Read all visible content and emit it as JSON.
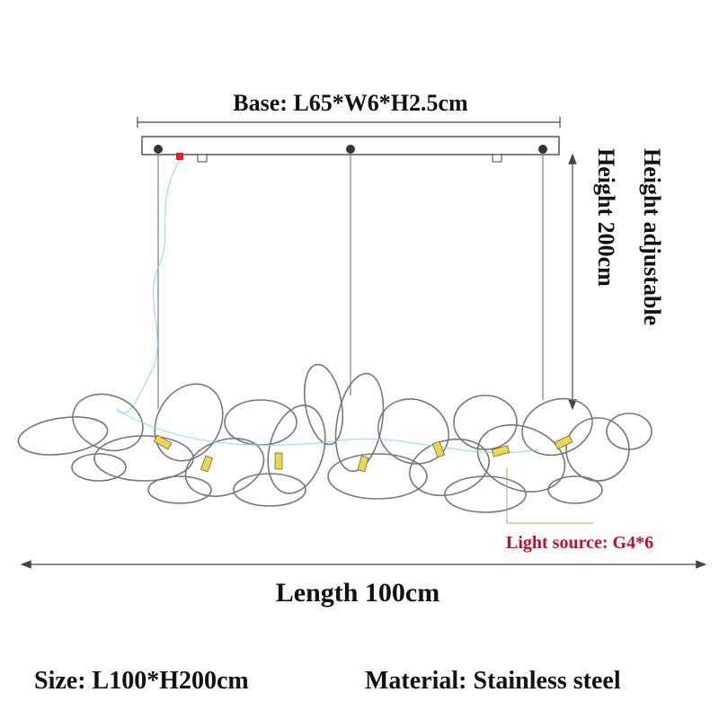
{
  "dimensions": {
    "base": "Base: L65*W6*H2.5cm",
    "height": "Height 200cm",
    "height_note": "Height adjustable",
    "length": "Length 100cm",
    "light_source": "Light source: G4*6"
  },
  "specs": {
    "size": "Size: L100*H200cm",
    "material": "Material: Stainless steel"
  }
}
